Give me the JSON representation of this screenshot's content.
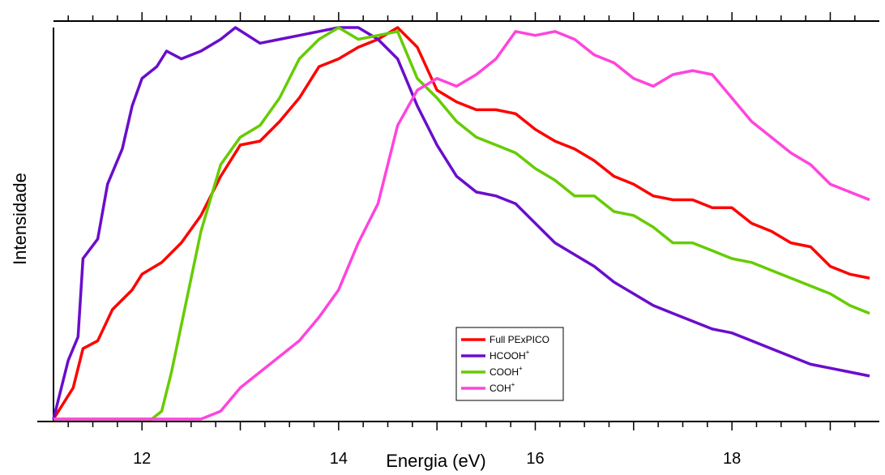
{
  "chart_data": {
    "type": "line",
    "xlabel": "Energia (eV)",
    "ylabel": "Intensidade",
    "xlim": [
      11.1,
      19.4
    ],
    "ylim": [
      0,
      1.0
    ],
    "x_ticks": [
      12,
      14,
      16,
      18
    ],
    "x_tick_labels": [
      "12",
      "14",
      "16",
      "18"
    ],
    "y_tick_labels_shown": false,
    "grid": false,
    "legend_position": "bottom-center",
    "series": [
      {
        "name": "Full PExPICO",
        "superscript": "",
        "color": "#ff0000",
        "points": [
          [
            11.1,
            0.0
          ],
          [
            11.3,
            0.08
          ],
          [
            11.4,
            0.18
          ],
          [
            11.55,
            0.2
          ],
          [
            11.7,
            0.28
          ],
          [
            11.9,
            0.33
          ],
          [
            12.0,
            0.37
          ],
          [
            12.2,
            0.4
          ],
          [
            12.4,
            0.45
          ],
          [
            12.6,
            0.52
          ],
          [
            12.8,
            0.62
          ],
          [
            13.0,
            0.7
          ],
          [
            13.2,
            0.71
          ],
          [
            13.4,
            0.76
          ],
          [
            13.6,
            0.82
          ],
          [
            13.8,
            0.9
          ],
          [
            14.0,
            0.92
          ],
          [
            14.2,
            0.95
          ],
          [
            14.4,
            0.97
          ],
          [
            14.6,
            1.0
          ],
          [
            14.8,
            0.95
          ],
          [
            15.0,
            0.84
          ],
          [
            15.2,
            0.81
          ],
          [
            15.4,
            0.79
          ],
          [
            15.6,
            0.79
          ],
          [
            15.8,
            0.78
          ],
          [
            16.0,
            0.74
          ],
          [
            16.2,
            0.71
          ],
          [
            16.4,
            0.69
          ],
          [
            16.6,
            0.66
          ],
          [
            16.8,
            0.62
          ],
          [
            17.0,
            0.6
          ],
          [
            17.2,
            0.57
          ],
          [
            17.4,
            0.56
          ],
          [
            17.6,
            0.56
          ],
          [
            17.8,
            0.54
          ],
          [
            18.0,
            0.54
          ],
          [
            18.2,
            0.5
          ],
          [
            18.4,
            0.48
          ],
          [
            18.6,
            0.45
          ],
          [
            18.8,
            0.44
          ],
          [
            19.0,
            0.39
          ],
          [
            19.2,
            0.37
          ],
          [
            19.4,
            0.36
          ]
        ]
      },
      {
        "name": "HCOOH",
        "superscript": "+",
        "color": "#6a0dcc",
        "points": [
          [
            11.1,
            0.0
          ],
          [
            11.25,
            0.15
          ],
          [
            11.35,
            0.21
          ],
          [
            11.4,
            0.41
          ],
          [
            11.55,
            0.46
          ],
          [
            11.65,
            0.6
          ],
          [
            11.8,
            0.69
          ],
          [
            11.9,
            0.8
          ],
          [
            12.0,
            0.87
          ],
          [
            12.15,
            0.9
          ],
          [
            12.25,
            0.94
          ],
          [
            12.4,
            0.92
          ],
          [
            12.6,
            0.94
          ],
          [
            12.8,
            0.97
          ],
          [
            12.95,
            1.0
          ],
          [
            13.2,
            0.96
          ],
          [
            13.4,
            0.97
          ],
          [
            13.6,
            0.98
          ],
          [
            13.8,
            0.99
          ],
          [
            14.0,
            1.0
          ],
          [
            14.2,
            1.0
          ],
          [
            14.4,
            0.97
          ],
          [
            14.6,
            0.92
          ],
          [
            14.8,
            0.8
          ],
          [
            15.0,
            0.7
          ],
          [
            15.2,
            0.62
          ],
          [
            15.4,
            0.58
          ],
          [
            15.6,
            0.57
          ],
          [
            15.8,
            0.55
          ],
          [
            16.0,
            0.5
          ],
          [
            16.2,
            0.45
          ],
          [
            16.4,
            0.42
          ],
          [
            16.6,
            0.39
          ],
          [
            16.8,
            0.35
          ],
          [
            17.0,
            0.32
          ],
          [
            17.2,
            0.29
          ],
          [
            17.4,
            0.27
          ],
          [
            17.6,
            0.25
          ],
          [
            17.8,
            0.23
          ],
          [
            18.0,
            0.22
          ],
          [
            18.2,
            0.2
          ],
          [
            18.4,
            0.18
          ],
          [
            18.6,
            0.16
          ],
          [
            18.8,
            0.14
          ],
          [
            19.0,
            0.13
          ],
          [
            19.2,
            0.12
          ],
          [
            19.4,
            0.11
          ]
        ]
      },
      {
        "name": "COOH",
        "superscript": "+",
        "color": "#66cc00",
        "points": [
          [
            11.1,
            0.0
          ],
          [
            12.1,
            0.0
          ],
          [
            12.2,
            0.02
          ],
          [
            12.3,
            0.12
          ],
          [
            12.45,
            0.3
          ],
          [
            12.6,
            0.48
          ],
          [
            12.8,
            0.65
          ],
          [
            13.0,
            0.72
          ],
          [
            13.2,
            0.75
          ],
          [
            13.4,
            0.82
          ],
          [
            13.6,
            0.92
          ],
          [
            13.8,
            0.97
          ],
          [
            14.0,
            1.0
          ],
          [
            14.2,
            0.97
          ],
          [
            14.4,
            0.98
          ],
          [
            14.6,
            0.99
          ],
          [
            14.8,
            0.87
          ],
          [
            15.0,
            0.82
          ],
          [
            15.2,
            0.76
          ],
          [
            15.4,
            0.72
          ],
          [
            15.6,
            0.7
          ],
          [
            15.8,
            0.68
          ],
          [
            16.0,
            0.64
          ],
          [
            16.2,
            0.61
          ],
          [
            16.4,
            0.57
          ],
          [
            16.6,
            0.57
          ],
          [
            16.8,
            0.53
          ],
          [
            17.0,
            0.52
          ],
          [
            17.2,
            0.49
          ],
          [
            17.4,
            0.45
          ],
          [
            17.6,
            0.45
          ],
          [
            17.8,
            0.43
          ],
          [
            18.0,
            0.41
          ],
          [
            18.2,
            0.4
          ],
          [
            18.4,
            0.38
          ],
          [
            18.6,
            0.36
          ],
          [
            18.8,
            0.34
          ],
          [
            19.0,
            0.32
          ],
          [
            19.2,
            0.29
          ],
          [
            19.4,
            0.27
          ]
        ]
      },
      {
        "name": "COH",
        "superscript": "+",
        "color": "#ff44dd",
        "points": [
          [
            11.1,
            0.0
          ],
          [
            12.6,
            0.0
          ],
          [
            12.8,
            0.02
          ],
          [
            13.0,
            0.08
          ],
          [
            13.2,
            0.12
          ],
          [
            13.4,
            0.16
          ],
          [
            13.6,
            0.2
          ],
          [
            13.8,
            0.26
          ],
          [
            14.0,
            0.33
          ],
          [
            14.2,
            0.45
          ],
          [
            14.4,
            0.55
          ],
          [
            14.6,
            0.75
          ],
          [
            14.8,
            0.84
          ],
          [
            15.0,
            0.87
          ],
          [
            15.2,
            0.85
          ],
          [
            15.4,
            0.88
          ],
          [
            15.6,
            0.92
          ],
          [
            15.8,
            0.99
          ],
          [
            16.0,
            0.98
          ],
          [
            16.2,
            0.99
          ],
          [
            16.4,
            0.97
          ],
          [
            16.6,
            0.93
          ],
          [
            16.8,
            0.91
          ],
          [
            17.0,
            0.87
          ],
          [
            17.2,
            0.85
          ],
          [
            17.4,
            0.88
          ],
          [
            17.6,
            0.89
          ],
          [
            17.8,
            0.88
          ],
          [
            18.0,
            0.82
          ],
          [
            18.2,
            0.76
          ],
          [
            18.4,
            0.72
          ],
          [
            18.6,
            0.68
          ],
          [
            18.8,
            0.65
          ],
          [
            19.0,
            0.6
          ],
          [
            19.2,
            0.58
          ],
          [
            19.4,
            0.56
          ]
        ]
      }
    ]
  }
}
